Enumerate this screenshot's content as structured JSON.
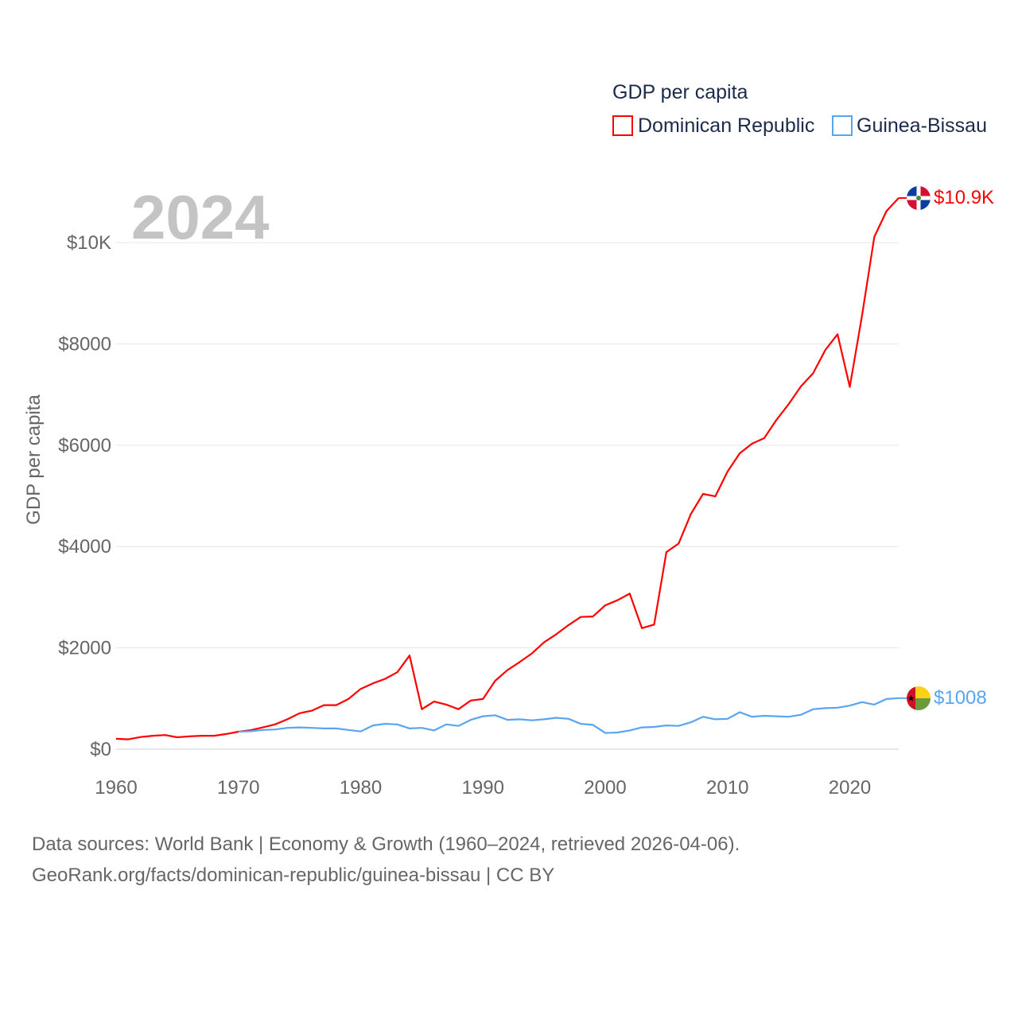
{
  "chart_data": {
    "type": "line",
    "title": "GDP per capita",
    "year_label": "2024",
    "ylabel": "GDP per capita",
    "xlabel": "",
    "xlim": [
      1960,
      2024
    ],
    "ylim": [
      0,
      10900
    ],
    "grid": true,
    "legend_position": "top-right",
    "x_ticks": [
      1960,
      1970,
      1980,
      1990,
      2000,
      2010,
      2020
    ],
    "x_tick_labels": [
      "1960",
      "1970",
      "1980",
      "1990",
      "2000",
      "2010",
      "2020"
    ],
    "y_ticks": [
      0,
      2000,
      4000,
      6000,
      8000,
      10000
    ],
    "y_tick_labels": [
      "$0",
      "$2000",
      "$4000",
      "$6000",
      "$8000",
      "$10K"
    ],
    "series": [
      {
        "name": "Dominican Republic",
        "color": "#ff0000",
        "end_label": "$10.9K",
        "flag": "dominican-republic-flag",
        "start_year": 1960,
        "values": [
          205,
          195,
          240,
          265,
          280,
          235,
          255,
          265,
          265,
          300,
          345,
          375,
          430,
          490,
          590,
          710,
          760,
          870,
          870,
          990,
          1190,
          1300,
          1390,
          1520,
          1850,
          790,
          940,
          880,
          790,
          960,
          990,
          1350,
          1560,
          1720,
          1890,
          2110,
          2270,
          2450,
          2610,
          2620,
          2840,
          2940,
          3070,
          2390,
          2460,
          3890,
          4060,
          4640,
          5040,
          4990,
          5480,
          5840,
          6030,
          6140,
          6500,
          6810,
          7160,
          7420,
          7880,
          8190,
          7150,
          8560,
          10110,
          10620,
          10880
        ]
      },
      {
        "name": "Guinea-Bissau",
        "color": "#5aa5f0",
        "end_label": "$1008",
        "flag": "guinea-bissau-flag",
        "start_year": 1970,
        "values": [
          345,
          355,
          380,
          390,
          420,
          430,
          420,
          410,
          410,
          380,
          350,
          470,
          500,
          490,
          410,
          420,
          370,
          490,
          460,
          580,
          650,
          670,
          580,
          590,
          570,
          590,
          620,
          600,
          500,
          480,
          320,
          330,
          370,
          430,
          440,
          470,
          460,
          530,
          640,
          590,
          600,
          730,
          640,
          660,
          650,
          640,
          680,
          790,
          810,
          820,
          860,
          930,
          880,
          990,
          1008
        ]
      }
    ]
  },
  "footer": {
    "line1": "Data sources: World Bank | Economy & Growth (1960–2024, retrieved 2026-04-06).",
    "line2": "GeoRank.org/facts/dominican-republic/guinea-bissau | CC BY"
  }
}
